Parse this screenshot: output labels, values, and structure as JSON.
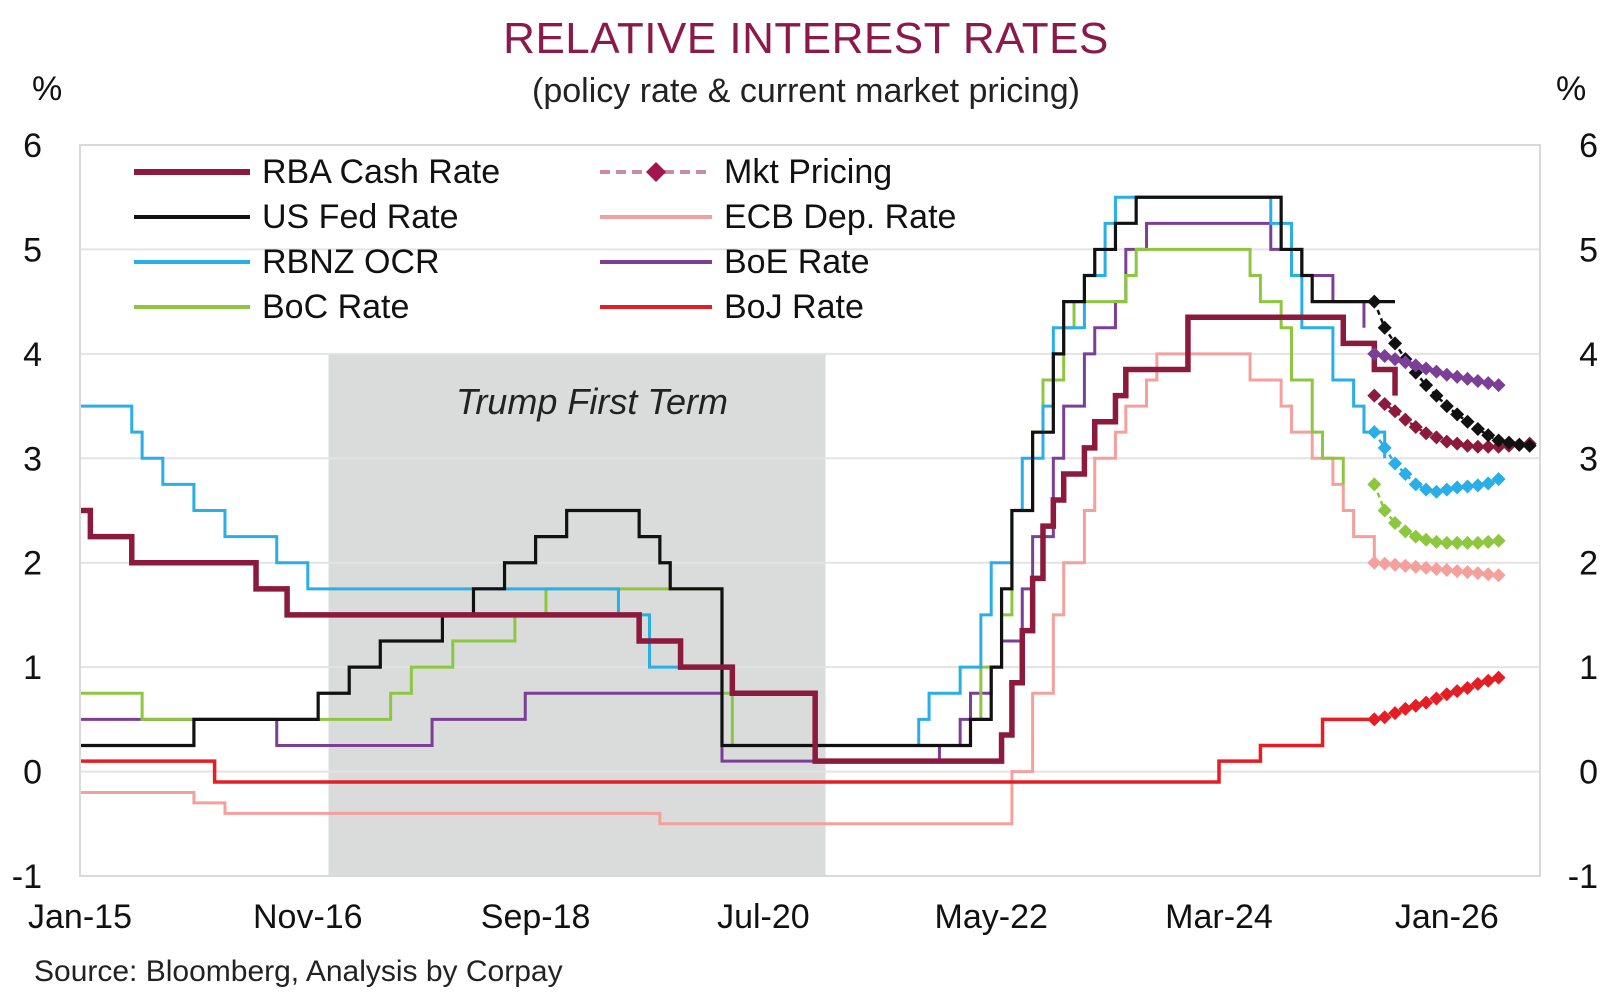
{
  "chart_data": {
    "type": "line",
    "title": "RELATIVE INTEREST RATES",
    "subtitle": "(policy rate & current market pricing)",
    "source": "Source: Bloomberg, Analysis by Corpay",
    "ylabel_left": "%",
    "ylabel_right": "%",
    "ylim": [
      -1,
      6
    ],
    "yticks": [
      "-1",
      "0",
      "1",
      "2",
      "3",
      "4",
      "5",
      "6"
    ],
    "xlim": [
      "2015-01",
      "2026-10"
    ],
    "xticks": [
      "Jan-15",
      "Nov-16",
      "Sep-18",
      "Jul-20",
      "May-22",
      "Mar-24",
      "Jan-26"
    ],
    "grid": true,
    "shaded_region": {
      "label": "Trump First Term",
      "start": "2017-01",
      "end": "2021-01",
      "color": "#d9dcdb"
    },
    "legend_position": "top-left",
    "series": [
      {
        "name": "RBA Cash Rate",
        "color": "#8b1a3c",
        "x": [
          "2015-01",
          "2015-02",
          "2015-05",
          "2015-06",
          "2016-05",
          "2016-06",
          "2016-08",
          "2016-09",
          "2019-06",
          "2019-07",
          "2019-10",
          "2019-11",
          "2020-03",
          "2020-04",
          "2020-11",
          "2020-12",
          "2022-05",
          "2022-06",
          "2022-07",
          "2022-08",
          "2022-09",
          "2022-10",
          "2022-11",
          "2022-12",
          "2023-02",
          "2023-03",
          "2023-05",
          "2023-06",
          "2023-11",
          "2023-12",
          "2025-02",
          "2025-03",
          "2025-05",
          "2025-06",
          "2025-08"
        ],
        "y": [
          2.5,
          2.25,
          2.25,
          2.0,
          2.0,
          1.75,
          1.75,
          1.5,
          1.5,
          1.25,
          1.25,
          1.0,
          1.0,
          0.75,
          0.75,
          0.1,
          0.1,
          0.35,
          0.85,
          1.35,
          1.85,
          2.35,
          2.6,
          2.85,
          3.1,
          3.35,
          3.6,
          3.85,
          3.85,
          4.35,
          4.35,
          4.1,
          4.1,
          3.85,
          3.6
        ]
      },
      {
        "name": "US Fed Rate",
        "color": "#111111",
        "x": [
          "2015-01",
          "2015-12",
          "2016-12",
          "2017-03",
          "2017-06",
          "2017-12",
          "2018-03",
          "2018-06",
          "2018-09",
          "2018-12",
          "2019-07",
          "2019-09",
          "2019-10",
          "2020-03",
          "2022-03",
          "2022-05",
          "2022-06",
          "2022-07",
          "2022-09",
          "2022-11",
          "2022-12",
          "2023-02",
          "2023-03",
          "2023-05",
          "2023-07",
          "2024-09",
          "2024-11",
          "2024-12",
          "2025-08"
        ],
        "y": [
          0.25,
          0.5,
          0.75,
          1.0,
          1.25,
          1.5,
          1.75,
          2.0,
          2.25,
          2.5,
          2.25,
          2.0,
          1.75,
          0.25,
          0.5,
          1.0,
          1.75,
          2.5,
          3.25,
          4.0,
          4.5,
          4.75,
          5.0,
          5.25,
          5.5,
          5.0,
          4.75,
          4.5,
          4.5
        ]
      },
      {
        "name": "RBNZ OCR",
        "color": "#29aee8",
        "x": [
          "2015-01",
          "2015-06",
          "2015-07",
          "2015-09",
          "2015-12",
          "2016-03",
          "2016-08",
          "2016-11",
          "2019-05",
          "2019-08",
          "2020-03",
          "2021-10",
          "2021-11",
          "2022-02",
          "2022-04",
          "2022-05",
          "2022-07",
          "2022-08",
          "2022-10",
          "2022-11",
          "2023-02",
          "2023-04",
          "2023-05",
          "2024-08",
          "2024-10",
          "2024-11",
          "2025-02",
          "2025-04",
          "2025-05",
          "2025-07"
        ],
        "y": [
          3.5,
          3.25,
          3.0,
          2.75,
          2.5,
          2.25,
          2.0,
          1.75,
          1.5,
          1.0,
          0.25,
          0.5,
          0.75,
          1.0,
          1.5,
          2.0,
          2.5,
          3.0,
          3.5,
          4.25,
          4.75,
          5.25,
          5.5,
          5.25,
          4.75,
          4.25,
          3.75,
          3.5,
          3.25,
          3.0
        ]
      },
      {
        "name": "BoC Rate",
        "color": "#8dc63f",
        "x": [
          "2015-01",
          "2015-07",
          "2017-07",
          "2017-09",
          "2018-01",
          "2018-07",
          "2018-10",
          "2020-03",
          "2020-04",
          "2022-03",
          "2022-04",
          "2022-06",
          "2022-07",
          "2022-09",
          "2022-10",
          "2022-12",
          "2023-01",
          "2023-06",
          "2023-07",
          "2024-06",
          "2024-07",
          "2024-09",
          "2024-10",
          "2024-12",
          "2025-01",
          "2025-03"
        ],
        "y": [
          0.75,
          0.5,
          0.75,
          1.0,
          1.25,
          1.5,
          1.75,
          0.75,
          0.25,
          0.5,
          1.0,
          1.5,
          2.5,
          3.25,
          3.75,
          4.25,
          4.5,
          4.75,
          5.0,
          4.75,
          4.5,
          4.25,
          3.75,
          3.25,
          3.0,
          2.75
        ]
      },
      {
        "name": "ECB Dep. Rate",
        "color": "#f4a09c",
        "x": [
          "2015-01",
          "2015-12",
          "2016-03",
          "2019-09",
          "2022-07",
          "2022-09",
          "2022-11",
          "2022-12",
          "2023-02",
          "2023-03",
          "2023-05",
          "2023-06",
          "2023-08",
          "2023-09",
          "2024-06",
          "2024-09",
          "2024-10",
          "2024-12",
          "2025-02",
          "2025-03",
          "2025-04",
          "2025-06"
        ],
        "y": [
          -0.2,
          -0.3,
          -0.4,
          -0.5,
          0.0,
          0.75,
          1.5,
          2.0,
          2.5,
          3.0,
          3.25,
          3.5,
          3.75,
          4.0,
          3.75,
          3.5,
          3.25,
          3.0,
          2.75,
          2.5,
          2.25,
          2.0
        ]
      },
      {
        "name": "BoE Rate",
        "color": "#7b3f98",
        "x": [
          "2015-01",
          "2016-08",
          "2017-11",
          "2018-08",
          "2020-03",
          "2021-12",
          "2022-02",
          "2022-03",
          "2022-05",
          "2022-06",
          "2022-08",
          "2022-09",
          "2022-11",
          "2022-12",
          "2023-02",
          "2023-03",
          "2023-05",
          "2023-06",
          "2023-08",
          "2024-08",
          "2024-11",
          "2025-02",
          "2025-05"
        ],
        "y": [
          0.5,
          0.25,
          0.5,
          0.75,
          0.1,
          0.25,
          0.5,
          0.75,
          1.0,
          1.25,
          1.75,
          2.25,
          3.0,
          3.5,
          4.0,
          4.25,
          4.5,
          5.0,
          5.25,
          5.0,
          4.75,
          4.5,
          4.25
        ]
      },
      {
        "name": "BoJ Rate",
        "color": "#e31e24",
        "x": [
          "2015-01",
          "2016-02",
          "2024-03",
          "2024-07",
          "2025-01",
          "2025-06"
        ],
        "y": [
          0.1,
          -0.1,
          0.1,
          0.25,
          0.5,
          0.5
        ]
      },
      {
        "name": "Mkt Pricing",
        "color": "#b03a6b",
        "style": "dashed-diamond",
        "sub_series": [
          {
            "curve": "RBA Cash Rate",
            "color": "#8b1a3c",
            "x": [
              "2025-06",
              "2025-07",
              "2025-08",
              "2025-09",
              "2025-10",
              "2025-11",
              "2025-12",
              "2026-01",
              "2026-02",
              "2026-03",
              "2026-04",
              "2026-05",
              "2026-06",
              "2026-07",
              "2026-08",
              "2026-09"
            ],
            "y": [
              3.6,
              3.52,
              3.45,
              3.37,
              3.3,
              3.24,
              3.2,
              3.16,
              3.14,
              3.12,
              3.11,
              3.11,
              3.11,
              3.12,
              3.13,
              3.14
            ]
          },
          {
            "curve": "US Fed Rate",
            "color": "#111111",
            "x": [
              "2025-06",
              "2025-07",
              "2025-08",
              "2025-09",
              "2025-10",
              "2025-11",
              "2025-12",
              "2026-01",
              "2026-02",
              "2026-03",
              "2026-04",
              "2026-05",
              "2026-06",
              "2026-07",
              "2026-08",
              "2026-09"
            ],
            "y": [
              4.5,
              4.25,
              4.1,
              3.95,
              3.82,
              3.7,
              3.6,
              3.5,
              3.42,
              3.35,
              3.28,
              3.22,
              3.17,
              3.15,
              3.13,
              3.12
            ]
          },
          {
            "curve": "RBNZ OCR",
            "color": "#29aee8",
            "x": [
              "2025-06",
              "2025-07",
              "2025-08",
              "2025-09",
              "2025-10",
              "2025-11",
              "2025-12",
              "2026-01",
              "2026-02",
              "2026-03",
              "2026-04",
              "2026-05",
              "2026-06"
            ],
            "y": [
              3.25,
              3.1,
              2.95,
              2.85,
              2.75,
              2.7,
              2.68,
              2.7,
              2.72,
              2.73,
              2.74,
              2.76,
              2.8
            ]
          },
          {
            "curve": "BoC Rate",
            "color": "#8dc63f",
            "x": [
              "2025-06",
              "2025-07",
              "2025-08",
              "2025-09",
              "2025-10",
              "2025-11",
              "2025-12",
              "2026-01",
              "2026-02",
              "2026-03",
              "2026-04",
              "2026-05",
              "2026-06"
            ],
            "y": [
              2.75,
              2.5,
              2.38,
              2.3,
              2.25,
              2.22,
              2.2,
              2.19,
              2.19,
              2.19,
              2.19,
              2.2,
              2.21
            ]
          },
          {
            "curve": "ECB Dep. Rate",
            "color": "#f4a09c",
            "x": [
              "2025-06",
              "2025-07",
              "2025-08",
              "2025-09",
              "2025-10",
              "2025-11",
              "2025-12",
              "2026-01",
              "2026-02",
              "2026-03",
              "2026-04",
              "2026-05",
              "2026-06"
            ],
            "y": [
              2.0,
              1.99,
              1.98,
              1.97,
              1.96,
              1.95,
              1.94,
              1.93,
              1.92,
              1.91,
              1.9,
              1.89,
              1.88
            ]
          },
          {
            "curve": "BoE Rate",
            "color": "#7b3f98",
            "x": [
              "2025-06",
              "2025-07",
              "2025-08",
              "2025-09",
              "2025-10",
              "2025-11",
              "2025-12",
              "2026-01",
              "2026-02",
              "2026-03",
              "2026-04",
              "2026-05",
              "2026-06"
            ],
            "y": [
              4.0,
              3.98,
              3.95,
              3.92,
              3.89,
              3.86,
              3.83,
              3.8,
              3.78,
              3.76,
              3.74,
              3.72,
              3.7
            ]
          },
          {
            "curve": "BoJ Rate",
            "color": "#e31e24",
            "x": [
              "2025-06",
              "2025-07",
              "2025-08",
              "2025-09",
              "2025-10",
              "2025-11",
              "2025-12",
              "2026-01",
              "2026-02",
              "2026-03",
              "2026-04",
              "2026-05",
              "2026-06"
            ],
            "y": [
              0.5,
              0.52,
              0.56,
              0.6,
              0.63,
              0.66,
              0.7,
              0.74,
              0.77,
              0.8,
              0.84,
              0.87,
              0.9
            ]
          }
        ]
      }
    ]
  }
}
